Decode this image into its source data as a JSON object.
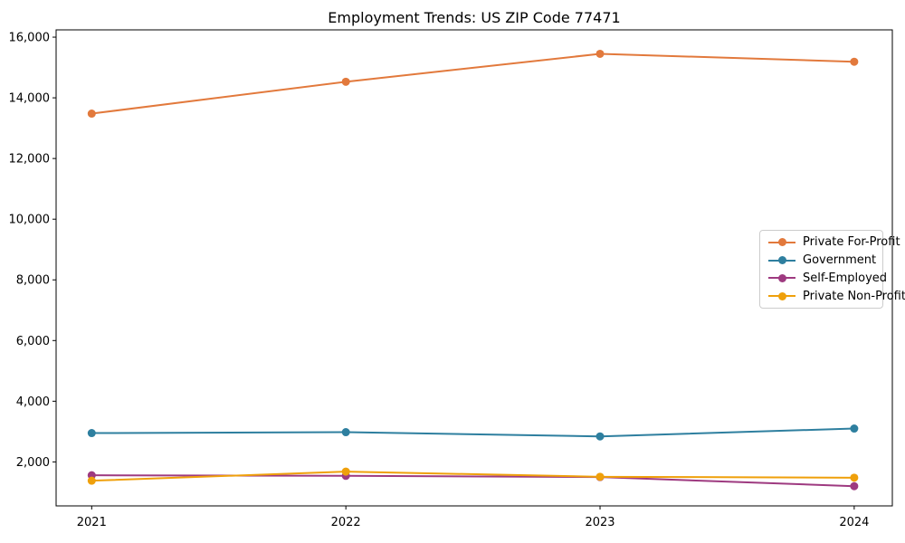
{
  "title": "Employment Trends: US ZIP Code 77471",
  "chart_data": {
    "type": "line",
    "title": "Employment Trends: US ZIP Code 77471",
    "xlabel": "",
    "ylabel": "",
    "x": [
      2021,
      2022,
      2023,
      2024
    ],
    "x_tick_labels": [
      "2021",
      "2022",
      "2023",
      "2024"
    ],
    "y_ticks": [
      2000,
      4000,
      6000,
      8000,
      10000,
      12000,
      14000,
      16000
    ],
    "y_tick_labels": [
      "2,000",
      "4,000",
      "6,000",
      "8,000",
      "10,000",
      "12,000",
      "14,000",
      "16,000"
    ],
    "xlim": [
      2020.86,
      2024.15
    ],
    "ylim": [
      550,
      16240
    ],
    "grid": false,
    "marker": "circle",
    "legend_position": "center right",
    "series": [
      {
        "name": "Private For-Profit",
        "color": "#E2793C",
        "values": [
          13480,
          14530,
          15450,
          15190
        ]
      },
      {
        "name": "Government",
        "color": "#2E7F9F",
        "values": [
          2950,
          2980,
          2840,
          3100
        ]
      },
      {
        "name": "Self-Employed",
        "color": "#9E3A80",
        "values": [
          1560,
          1540,
          1500,
          1200
        ]
      },
      {
        "name": "Private Non-Profit",
        "color": "#EFA00B",
        "values": [
          1380,
          1680,
          1510,
          1480
        ]
      }
    ]
  }
}
